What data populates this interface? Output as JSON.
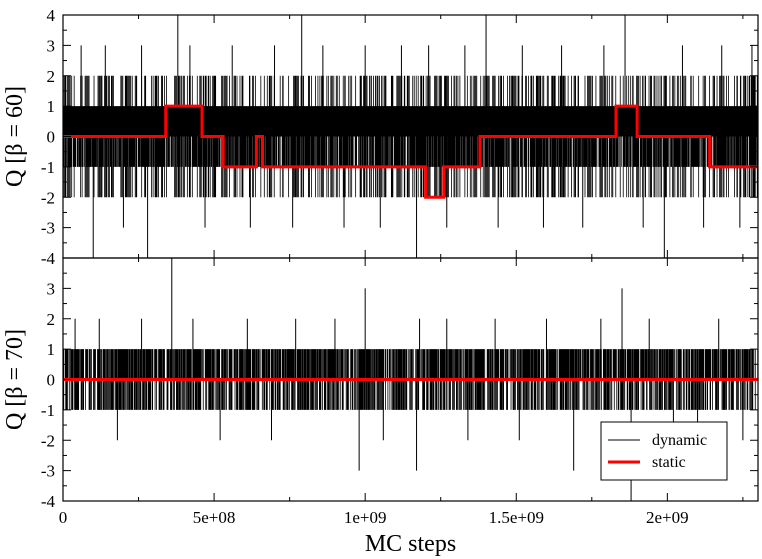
{
  "chart_data": [
    {
      "type": "line",
      "ylabel": "Q [β = 60]",
      "xlabel": "",
      "xlim": [
        0,
        2300000000
      ],
      "ylim": [
        -4,
        4
      ],
      "yticks": [
        -4,
        -3,
        -2,
        -1,
        0,
        1,
        2,
        3,
        4
      ],
      "ytick_labels": [
        "-4",
        "-3",
        "-2",
        "-1",
        "0",
        "1",
        "2",
        "3",
        "4"
      ],
      "grid": false,
      "series": [
        {
          "name": "dynamic",
          "color": "#000000",
          "description_range": [
            -4,
            4
          ],
          "spikes": [
            [
              60000000,
              3
            ],
            [
              100000000,
              -4
            ],
            [
              140000000,
              3
            ],
            [
              200000000,
              -3
            ],
            [
              260000000,
              3
            ],
            [
              280000000,
              -4
            ],
            [
              380000000,
              4
            ],
            [
              420000000,
              3
            ],
            [
              470000000,
              -3
            ],
            [
              560000000,
              3
            ],
            [
              620000000,
              -3
            ],
            [
              700000000,
              3
            ],
            [
              760000000,
              -3
            ],
            [
              790000000,
              4
            ],
            [
              860000000,
              3
            ],
            [
              930000000,
              -3
            ],
            [
              1000000000,
              3
            ],
            [
              1050000000,
              -3
            ],
            [
              1120000000,
              3
            ],
            [
              1170000000,
              -4
            ],
            [
              1210000000,
              3
            ],
            [
              1270000000,
              -3
            ],
            [
              1330000000,
              3
            ],
            [
              1400000000,
              4
            ],
            [
              1440000000,
              -3
            ],
            [
              1520000000,
              3
            ],
            [
              1590000000,
              -3
            ],
            [
              1650000000,
              3
            ],
            [
              1720000000,
              -3
            ],
            [
              1790000000,
              3
            ],
            [
              1860000000,
              4
            ],
            [
              1920000000,
              -3
            ],
            [
              1990000000,
              -4
            ],
            [
              2050000000,
              3
            ],
            [
              2120000000,
              -3
            ],
            [
              2180000000,
              3
            ],
            [
              2240000000,
              -3
            ],
            [
              2280000000,
              3
            ]
          ]
        },
        {
          "name": "static",
          "color": "#ff0000",
          "x": [
            0,
            340000000,
            340000000,
            460000000,
            460000000,
            530000000,
            530000000,
            640000000,
            640000000,
            660000000,
            660000000,
            1200000000,
            1200000000,
            1260000000,
            1260000000,
            1380000000,
            1380000000,
            1830000000,
            1830000000,
            1900000000,
            1900000000,
            2140000000,
            2140000000,
            2300000000
          ],
          "y": [
            0,
            0,
            1,
            1,
            0,
            0,
            -1,
            -1,
            0,
            0,
            -1,
            -1,
            -2,
            -2,
            -1,
            -1,
            0,
            0,
            1,
            1,
            0,
            0,
            -1,
            -1
          ]
        }
      ]
    },
    {
      "type": "line",
      "ylabel": "Q [β = 70]",
      "xlabel": "MC steps",
      "xlim": [
        0,
        2300000000
      ],
      "ylim": [
        -4,
        4
      ],
      "xticks": [
        0,
        500000000,
        1000000000,
        1500000000,
        2000000000
      ],
      "xtick_labels": [
        "0",
        "5e+08",
        "1e+09",
        "1.5e+09",
        "2e+09"
      ],
      "yticks": [
        -4,
        -3,
        -2,
        -1,
        0,
        1,
        2,
        3
      ],
      "ytick_labels": [
        "-4",
        "-3",
        "-2",
        "-1",
        "0",
        "1",
        "2",
        "3"
      ],
      "grid": false,
      "legend": {
        "placement": "bottom-right",
        "entries": [
          "dynamic",
          "static"
        ]
      },
      "series": [
        {
          "name": "dynamic",
          "color": "#000000",
          "description_range": [
            -4,
            4
          ],
          "spikes": [
            [
              40000000,
              2
            ],
            [
              120000000,
              2
            ],
            [
              180000000,
              -2
            ],
            [
              260000000,
              2
            ],
            [
              360000000,
              4
            ],
            [
              430000000,
              2
            ],
            [
              520000000,
              -2
            ],
            [
              610000000,
              2
            ],
            [
              690000000,
              -2
            ],
            [
              770000000,
              2
            ],
            [
              900000000,
              2
            ],
            [
              980000000,
              -3
            ],
            [
              1000000000,
              3
            ],
            [
              1060000000,
              -2
            ],
            [
              1170000000,
              -3
            ],
            [
              1180000000,
              2
            ],
            [
              1270000000,
              2
            ],
            [
              1340000000,
              -2
            ],
            [
              1430000000,
              2
            ],
            [
              1510000000,
              -2
            ],
            [
              1600000000,
              2
            ],
            [
              1690000000,
              -3
            ],
            [
              1780000000,
              2
            ],
            [
              1850000000,
              3
            ],
            [
              1880000000,
              -4
            ],
            [
              1940000000,
              2
            ],
            [
              2020000000,
              -2
            ],
            [
              2100000000,
              -3
            ],
            [
              2170000000,
              2
            ],
            [
              2250000000,
              -2
            ]
          ]
        },
        {
          "name": "static",
          "color": "#ff0000",
          "x": [
            0,
            2300000000
          ],
          "y": [
            0,
            0
          ]
        }
      ]
    }
  ]
}
